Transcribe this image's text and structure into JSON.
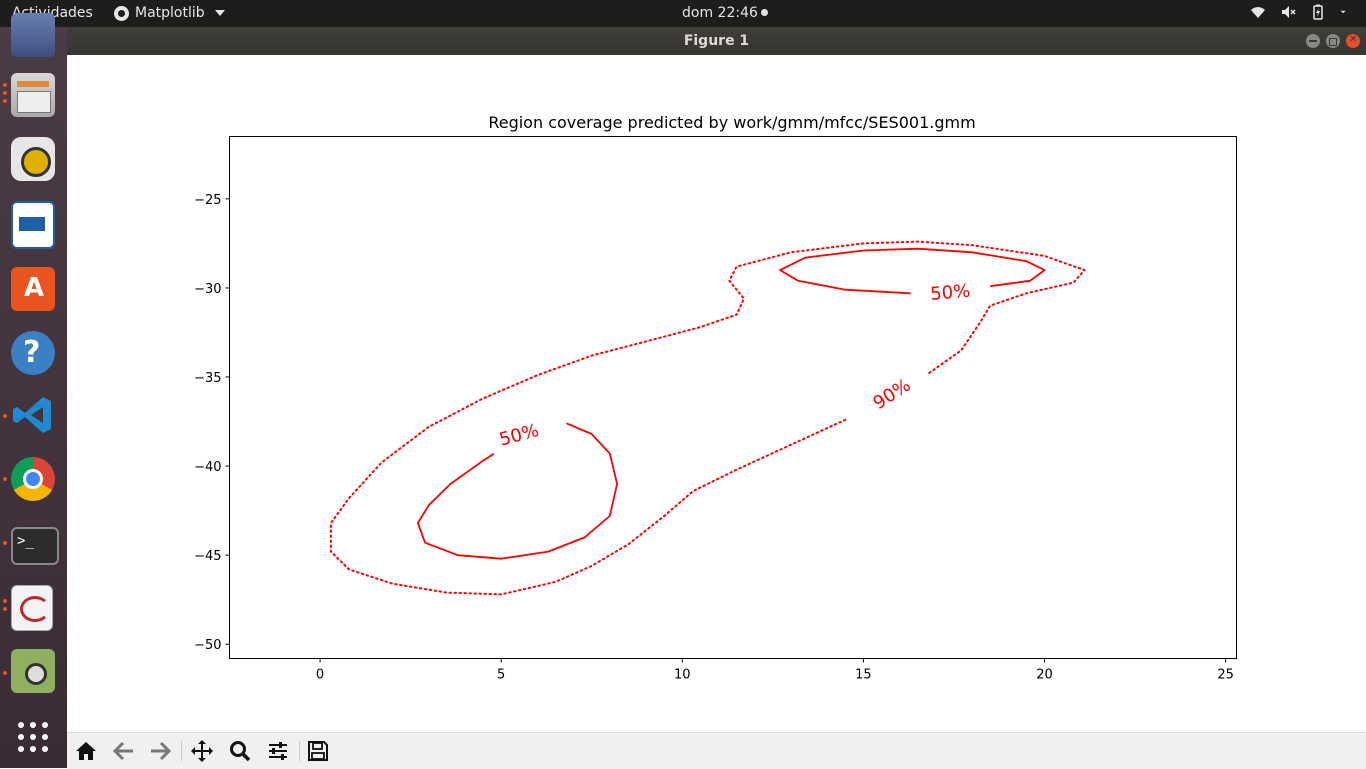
{
  "topbar": {
    "activities": "Actividades",
    "app_menu": "Matplotlib",
    "clock": "dom 22:46"
  },
  "window": {
    "title": "Figure 1"
  },
  "dock": {
    "items": [
      "mail-icon",
      "files-icon",
      "rhythmbox-icon",
      "writer-icon",
      "software-center-icon",
      "help-icon",
      "vscode-icon",
      "chrome-icon",
      "terminal-icon",
      "document-viewer-icon",
      "image-viewer-icon",
      "show-apps-icon"
    ]
  },
  "chart_data": {
    "type": "contour",
    "title": "Region coverage predicted by work/gmm/mfcc/SES001.gmm",
    "xlabel": "",
    "ylabel": "",
    "xlim": [
      -2.5,
      25.3
    ],
    "ylim": [
      -50.8,
      -21.5
    ],
    "x_ticks": [
      "0",
      "5",
      "10",
      "15",
      "20",
      "25"
    ],
    "y_ticks": [
      "−25",
      "−30",
      "−35",
      "−40",
      "−45",
      "−50"
    ],
    "x_tick_values": [
      0,
      5,
      10,
      15,
      20,
      25
    ],
    "y_tick_values": [
      -25,
      -30,
      -35,
      -40,
      -45,
      -50
    ],
    "color": "#ff0000",
    "contours": [
      {
        "level_label": "90%",
        "style": "dotted",
        "label_pos": [
          15.8,
          -36.0
        ],
        "points": [
          [
            14.5,
            -37.4
          ],
          [
            13,
            -38.8
          ],
          [
            11.5,
            -40.2
          ],
          [
            10.3,
            -41.4
          ],
          [
            9.5,
            -42.8
          ],
          [
            8.5,
            -44.4
          ],
          [
            7.5,
            -45.6
          ],
          [
            6.5,
            -46.5
          ],
          [
            5,
            -47.2
          ],
          [
            3.5,
            -47.1
          ],
          [
            2,
            -46.6
          ],
          [
            0.8,
            -45.8
          ],
          [
            0.3,
            -44.8
          ],
          [
            0.3,
            -43.2
          ],
          [
            0.8,
            -41.8
          ],
          [
            1.7,
            -39.8
          ],
          [
            3,
            -37.8
          ],
          [
            4.5,
            -36.2
          ],
          [
            6,
            -34.9
          ],
          [
            7.5,
            -33.8
          ],
          [
            9,
            -33.0
          ],
          [
            10.5,
            -32.2
          ],
          [
            11.5,
            -31.5
          ],
          [
            11.7,
            -30.6
          ],
          [
            11.3,
            -29.6
          ],
          [
            11.5,
            -28.8
          ],
          [
            13,
            -28.0
          ],
          [
            15,
            -27.5
          ],
          [
            16.5,
            -27.4
          ],
          [
            18,
            -27.6
          ],
          [
            20,
            -28.2
          ],
          [
            21.1,
            -29.0
          ],
          [
            20.8,
            -29.7
          ],
          [
            19.5,
            -30.3
          ],
          [
            18.5,
            -31.0
          ],
          [
            18.2,
            -32.0
          ],
          [
            17.7,
            -33.5
          ],
          [
            16.8,
            -34.8
          ]
        ]
      },
      {
        "level_label": "90%",
        "style": "dotted",
        "label_pos": null,
        "points": []
      },
      {
        "level_label": "50%",
        "style": "solid",
        "label_pos": [
          5.5,
          -38.3
        ],
        "points": [
          [
            6.8,
            -37.6
          ],
          [
            7.5,
            -38.2
          ],
          [
            8.0,
            -39.3
          ],
          [
            8.2,
            -41.0
          ],
          [
            8.0,
            -42.8
          ],
          [
            7.3,
            -44.0
          ],
          [
            6.3,
            -44.8
          ],
          [
            5,
            -45.2
          ],
          [
            3.8,
            -45.0
          ],
          [
            2.9,
            -44.3
          ],
          [
            2.7,
            -43.2
          ],
          [
            3.0,
            -42.2
          ],
          [
            3.6,
            -41.0
          ],
          [
            4.5,
            -39.7
          ],
          [
            4.8,
            -39.3
          ]
        ]
      },
      {
        "level_label": "50%",
        "style": "solid",
        "label_pos": [
          17.4,
          -30.3
        ],
        "points": [
          [
            16.3,
            -30.3
          ],
          [
            14.5,
            -30.1
          ],
          [
            13.2,
            -29.6
          ],
          [
            12.7,
            -29.0
          ],
          [
            13.4,
            -28.3
          ],
          [
            15,
            -27.9
          ],
          [
            16.5,
            -27.8
          ],
          [
            18,
            -28.0
          ],
          [
            19.5,
            -28.5
          ],
          [
            20,
            -29.0
          ],
          [
            19.6,
            -29.6
          ],
          [
            18.5,
            -29.9
          ]
        ]
      }
    ]
  }
}
